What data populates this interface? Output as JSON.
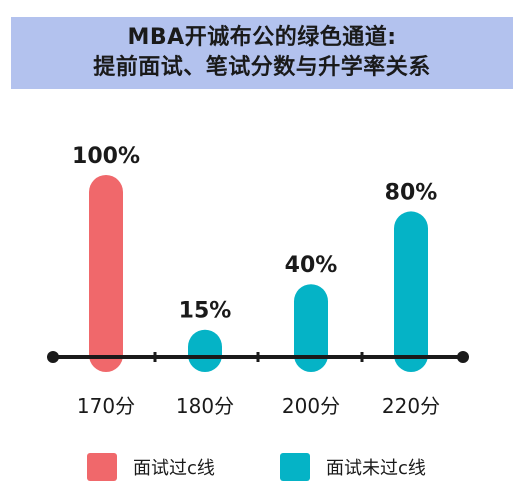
{
  "header": {
    "title_line1": "MBA开诚布公的绿色通道:",
    "title_line2": "提前面试、笔试分数与升学率关系"
  },
  "colors": {
    "header_bg": "#b3c2ee",
    "passed": "#f0686b",
    "not_passed": "#05b3c6",
    "axis": "#1a1a1a"
  },
  "legend": [
    {
      "label": "面试过c线",
      "color": "#f0686b"
    },
    {
      "label": "面试未过c线",
      "color": "#05b3c6"
    }
  ],
  "chart_data": {
    "type": "bar",
    "title": "",
    "xlabel": "",
    "ylabel": "",
    "categories": [
      "170分",
      "180分",
      "200分",
      "220分"
    ],
    "values": [
      100,
      15,
      40,
      80
    ],
    "value_labels": [
      "100%",
      "15%",
      "40%",
      "80%"
    ],
    "bar_series": [
      "面试过c线",
      "面试未过c线",
      "面试未过c线",
      "面试未过c线"
    ],
    "ylim": [
      0,
      100
    ],
    "grid": false,
    "legend_position": "bottom"
  }
}
